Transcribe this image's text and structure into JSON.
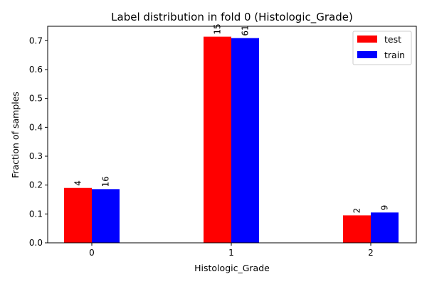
{
  "chart_data": {
    "type": "bar",
    "title": "Label distribution in fold 0 (Histologic_Grade)",
    "xlabel": "Histologic_Grade",
    "ylabel": "Fraction of samples",
    "categories": [
      "0",
      "1",
      "2"
    ],
    "series": [
      {
        "name": "test",
        "color": "#ff0000",
        "values": [
          0.19,
          0.714,
          0.095
        ],
        "labels": [
          "4",
          "15",
          "2"
        ]
      },
      {
        "name": "train",
        "color": "#0000ff",
        "values": [
          0.186,
          0.709,
          0.105
        ],
        "labels": [
          "16",
          "61",
          "9"
        ]
      }
    ],
    "ylim": [
      0,
      0.75
    ],
    "yticks": [
      "0.0",
      "0.1",
      "0.2",
      "0.3",
      "0.4",
      "0.5",
      "0.6",
      "0.7"
    ],
    "grid": false,
    "legend_position": "top-right"
  }
}
